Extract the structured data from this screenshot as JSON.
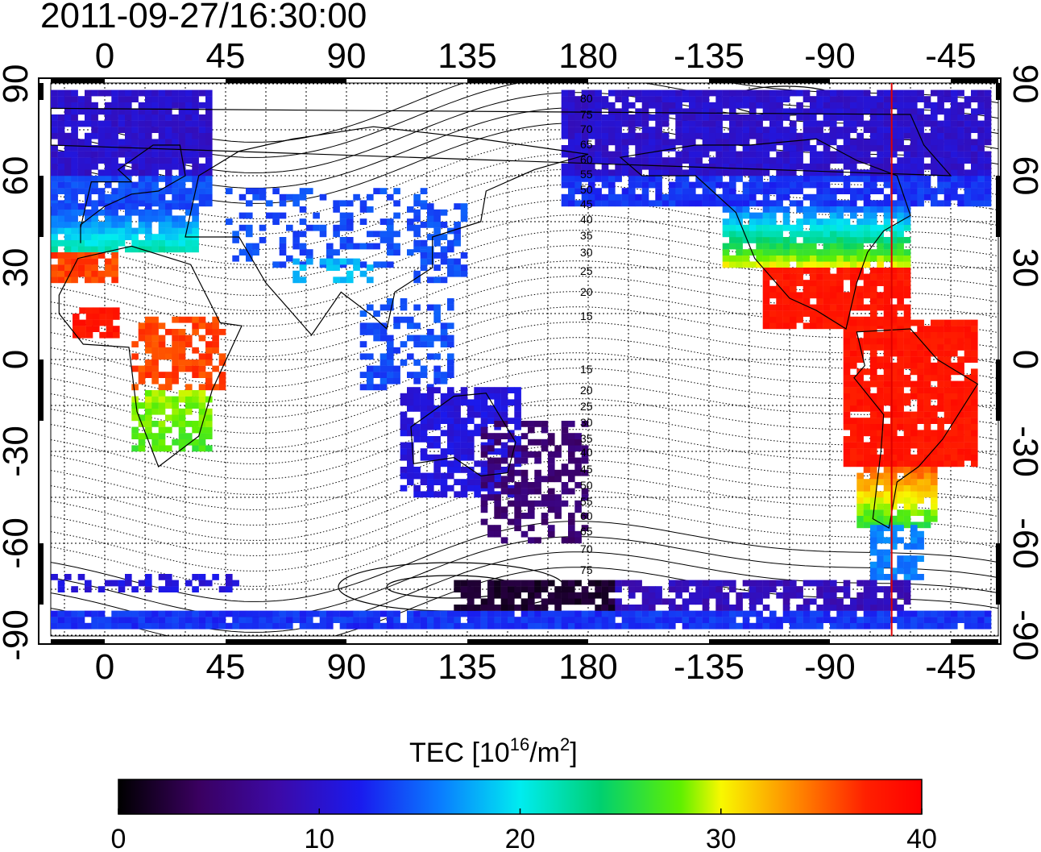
{
  "title": "2011-09-27/16:30:00",
  "map": {
    "lon_ticks": [
      "0",
      "45",
      "90",
      "135",
      "180",
      "-135",
      "-90",
      "-45"
    ],
    "lat_ticks": [
      "90",
      "60",
      "30",
      "0",
      "-30",
      "-60",
      "-90"
    ],
    "terminator_line_lon": -67,
    "contour_labels": [
      "80",
      "75",
      "70",
      "65",
      "60",
      "55",
      "50",
      "45",
      "40",
      "35",
      "30",
      "25",
      "20",
      "15",
      "15",
      "20",
      "25",
      "30",
      "35",
      "40",
      "45",
      "50",
      "55",
      "60",
      "65",
      "70",
      "75"
    ]
  },
  "colorbar": {
    "label_main": "TEC  [10",
    "label_exp1": "16",
    "label_mid": "/m",
    "label_exp2": "2",
    "label_end": "]",
    "ticks": [
      "0",
      "10",
      "20",
      "30",
      "40"
    ],
    "min": 0,
    "max": 40
  }
}
